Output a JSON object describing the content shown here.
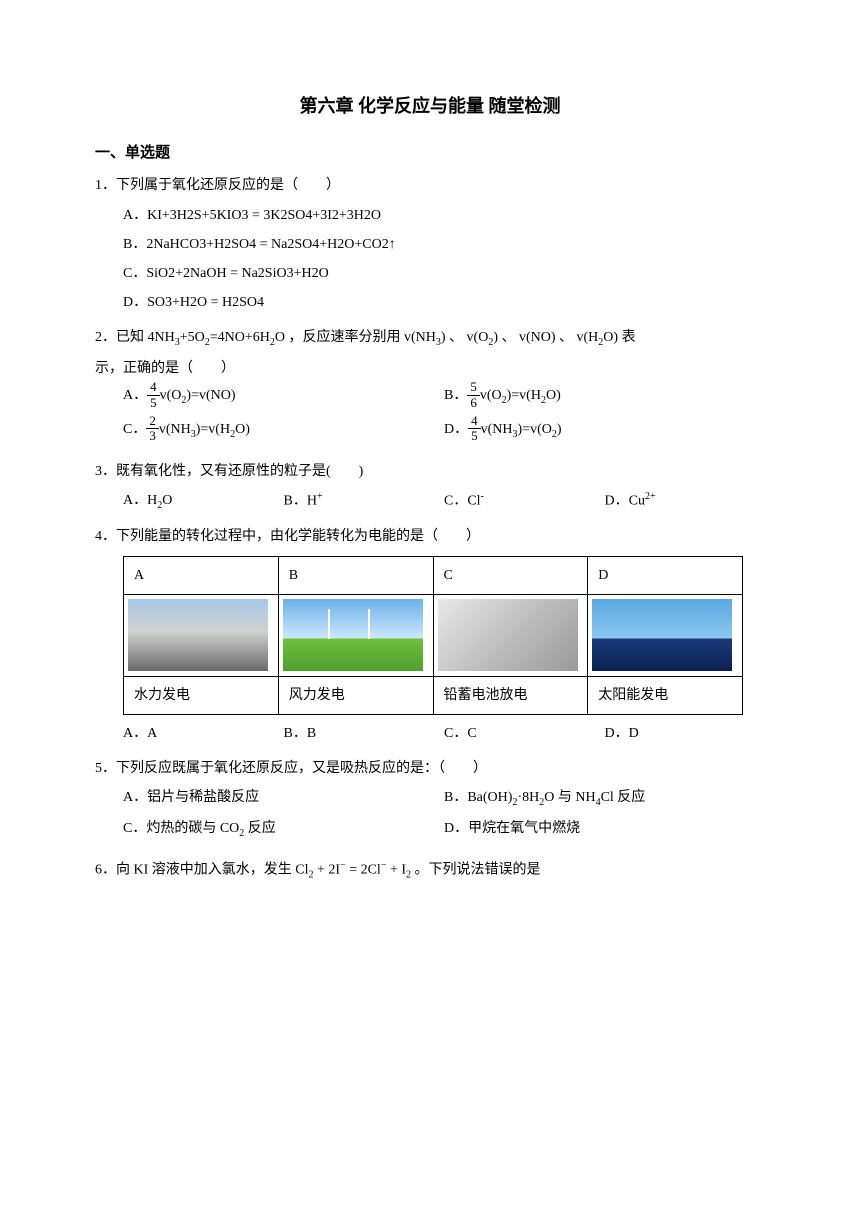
{
  "title": "第六章 化学反应与能量 随堂检测",
  "section_heading": "一、单选题",
  "q1": {
    "stem": "1．下列属于氧化还原反应的是（　　）",
    "a": "A．KI+3H2S+5KIO3 = 3K2SO4+3I2+3H2O",
    "b": "B．2NaHCO3+H2SO4 = Na2SO4+H2O+CO2↑",
    "c": "C．SiO2+2NaOH = Na2SiO3+H2O",
    "d": "D．SO3+H2O = H2SO4"
  },
  "q2": {
    "stem_1": "2．已知 4NH",
    "stem_2": "+5O",
    "stem_3": "=4NO+6H",
    "stem_4": "O ，反应速率分别用 v(NH",
    "stem_5": ") 、 v(O",
    "stem_6": ") 、 v(NO) 、 v(H",
    "stem_7": "O) 表",
    "stem_line2": "示，正确的是（　　）",
    "a_pre": "A．",
    "a_num": "4",
    "a_den": "5",
    "a_post": "v(O",
    "a_post2": ")=v(NO)",
    "b_pre": "B．",
    "b_num": "5",
    "b_den": "6",
    "b_post": "v(O",
    "b_post2": ")=v(H",
    "b_post3": "O)",
    "c_pre": "C．",
    "c_num": "2",
    "c_den": "3",
    "c_post": "v(NH",
    "c_post2": ")=v(H",
    "c_post3": "O)",
    "d_pre": "D．",
    "d_num": "4",
    "d_den": "5",
    "d_post": "v(NH",
    "d_post2": ")=v(O",
    "d_post3": ")"
  },
  "q3": {
    "stem": "3．既有氧化性，又有还原性的粒子是(　　)",
    "a_pre": "A．H",
    "a_sub": "2",
    "a_post": "O",
    "b_pre": "B．H",
    "b_sup": "+",
    "c_pre": "C．Cl",
    "c_sup": "-",
    "d_pre": "D．Cu",
    "d_sup": "2+"
  },
  "q4": {
    "stem": "4．下列能量的转化过程中，由化学能转化为电能的是（　　）",
    "headers": [
      "A",
      "B",
      "C",
      "D"
    ],
    "captions": [
      "水力发电",
      "风力发电",
      "铅蓄电池放电",
      "太阳能发电"
    ],
    "opts": [
      "A．A",
      "B．B",
      "C．C",
      "D．D"
    ]
  },
  "q5": {
    "stem": "5．下列反应既属于氧化还原反应，又是吸热反应的是：（　　）",
    "a": "A．铝片与稀盐酸反应",
    "b_pre": "B．Ba(OH)",
    "b_sub1": "2",
    "b_mid": "·8H",
    "b_sub2": "2",
    "b_mid2": "O 与 NH",
    "b_sub3": "4",
    "b_post": "Cl 反应",
    "c_pre": "C．灼热的碳与 CO",
    "c_sub": "2",
    "c_post": " 反应",
    "d": "D．甲烷在氧气中燃烧"
  },
  "q6": {
    "stem_1": "6．向 KI 溶液中加入氯水，发生 Cl",
    "stem_2": " + 2I",
    "stem_3": " = 2Cl",
    "stem_4": " + I",
    "stem_5": " 。下列说法错误的是"
  }
}
